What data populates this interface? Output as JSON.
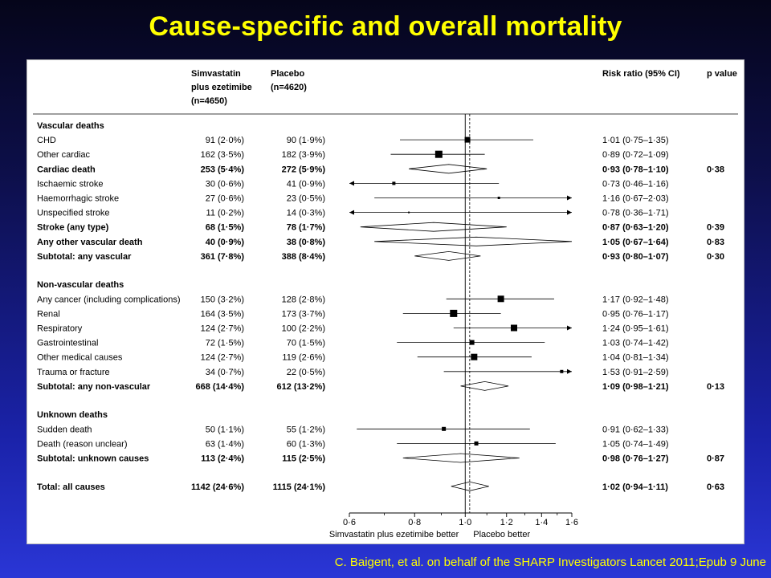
{
  "slide": {
    "title": "Cause-specific and overall mortality",
    "citation": "C. Baigent, et al. on behalf of the SHARP Investigators Lancet 2011;Epub 9 June"
  },
  "colors": {
    "title": "#ffff00",
    "citation": "#ffff00",
    "panel": "#ffffff",
    "ink": "#000000"
  },
  "chart_data": {
    "type": "forest",
    "headers": {
      "col1": [
        "Simvastatin",
        "plus ezetimibe",
        "(n=4650)"
      ],
      "col2": [
        "Placebo",
        "(n=4620)"
      ],
      "rr": "Risk ratio (95% CI)",
      "p": "p value"
    },
    "x_axis": {
      "scale": "log",
      "range": [
        0.6,
        1.6
      ],
      "ticks": [
        0.6,
        0.8,
        1.0,
        1.2,
        1.4,
        1.6
      ],
      "tick_labels": [
        "0·6",
        "0·8",
        "1·0",
        "1·2",
        "1·4",
        "1·6"
      ],
      "minor_ticks": [
        0.7,
        0.9,
        1.1,
        1.3,
        1.5
      ],
      "reference_line": 1.0,
      "overall_line": 1.02,
      "label_left": "Simvastatin plus ezetimibe better",
      "label_right": "Placebo better"
    },
    "rows": [
      {
        "type": "section",
        "label": "Vascular deaths"
      },
      {
        "type": "item",
        "label": "CHD",
        "simva": "91 (2·0%)",
        "placebo": "90 (1·9%)",
        "rr": 1.01,
        "lo": 0.75,
        "hi": 1.35,
        "rr_text": "1·01 (0·75–1·35)",
        "p": "",
        "size": 7
      },
      {
        "type": "item",
        "label": "Other cardiac",
        "simva": "162 (3·5%)",
        "placebo": "182 (3·9%)",
        "rr": 0.89,
        "lo": 0.72,
        "hi": 1.09,
        "rr_text": "0·89 (0·72–1·09)",
        "p": "",
        "size": 9
      },
      {
        "type": "subtotal",
        "label": "Cardiac death",
        "simva": "253 (5·4%)",
        "placebo": "272 (5·9%)",
        "rr": 0.93,
        "lo": 0.78,
        "hi": 1.1,
        "rr_text": "0·93 (0·78–1·10)",
        "p": "0·38"
      },
      {
        "type": "item",
        "label": "Ischaemic stroke",
        "simva": "30 (0·6%)",
        "placebo": "41 (0·9%)",
        "rr": 0.73,
        "lo": 0.46,
        "hi": 1.16,
        "rr_text": "0·73 (0·46–1·16)",
        "p": "",
        "size": 4
      },
      {
        "type": "item",
        "label": "Haemorrhagic stroke",
        "simva": "27 (0·6%)",
        "placebo": "23 (0·5%)",
        "rr": 1.16,
        "lo": 0.67,
        "hi": 2.03,
        "rr_text": "1·16 (0·67–2·03)",
        "p": "",
        "size": 3
      },
      {
        "type": "item",
        "label": "Unspecified stroke",
        "simva": "11 (0·2%)",
        "placebo": "14 (0·3%)",
        "rr": 0.78,
        "lo": 0.36,
        "hi": 1.71,
        "rr_text": "0·78 (0·36–1·71)",
        "p": "",
        "size": 2
      },
      {
        "type": "subtotal",
        "label": "Stroke (any type)",
        "simva": "68 (1·5%)",
        "placebo": "78 (1·7%)",
        "rr": 0.87,
        "lo": 0.63,
        "hi": 1.2,
        "rr_text": "0·87 (0·63–1·20)",
        "p": "0·39"
      },
      {
        "type": "subtotal",
        "label": "Any other vascular death",
        "simva": "40 (0·9%)",
        "placebo": "38 (0·8%)",
        "rr": 1.05,
        "lo": 0.67,
        "hi": 1.64,
        "rr_text": "1·05 (0·67–1·64)",
        "p": "0·83"
      },
      {
        "type": "subtotal",
        "label": "Subtotal: any vascular",
        "simva": "361 (7·8%)",
        "placebo": "388 (8·4%)",
        "rr": 0.93,
        "lo": 0.8,
        "hi": 1.07,
        "rr_text": "0·93 (0·80–1·07)",
        "p": "0·30"
      },
      {
        "type": "gap"
      },
      {
        "type": "section",
        "label": "Non-vascular deaths"
      },
      {
        "type": "item",
        "label": "Any cancer (including complications)",
        "simva": "150 (3·2%)",
        "placebo": "128 (2·8%)",
        "rr": 1.17,
        "lo": 0.92,
        "hi": 1.48,
        "rr_text": "1·17 (0·92–1·48)",
        "p": "",
        "size": 8
      },
      {
        "type": "item",
        "label": "Renal",
        "simva": "164 (3·5%)",
        "placebo": "173 (3·7%)",
        "rr": 0.95,
        "lo": 0.76,
        "hi": 1.17,
        "rr_text": "0·95 (0·76–1·17)",
        "p": "",
        "size": 9
      },
      {
        "type": "item",
        "label": "Respiratory",
        "simva": "124 (2·7%)",
        "placebo": "100 (2·2%)",
        "rr": 1.24,
        "lo": 0.95,
        "hi": 1.61,
        "rr_text": "1·24 (0·95–1·61)",
        "p": "",
        "size": 8
      },
      {
        "type": "item",
        "label": "Gastrointestinal",
        "simva": "72 (1·5%)",
        "placebo": "70 (1·5%)",
        "rr": 1.03,
        "lo": 0.74,
        "hi": 1.42,
        "rr_text": "1·03 (0·74–1·42)",
        "p": "",
        "size": 6
      },
      {
        "type": "item",
        "label": "Other medical causes",
        "simva": "124 (2·7%)",
        "placebo": "119 (2·6%)",
        "rr": 1.04,
        "lo": 0.81,
        "hi": 1.34,
        "rr_text": "1·04 (0·81–1·34)",
        "p": "",
        "size": 8
      },
      {
        "type": "item",
        "label": "Trauma or fracture",
        "simva": "34 (0·7%)",
        "placebo": "22 (0·5%)",
        "rr": 1.53,
        "lo": 0.91,
        "hi": 2.59,
        "rr_text": "1·53 (0·91–2·59)",
        "p": "",
        "size": 4
      },
      {
        "type": "subtotal",
        "label": "Subtotal: any non-vascular",
        "simva": "668 (14·4%)",
        "placebo": "612 (13·2%)",
        "rr": 1.09,
        "lo": 0.98,
        "hi": 1.21,
        "rr_text": "1·09 (0·98–1·21)",
        "p": "0·13"
      },
      {
        "type": "gap"
      },
      {
        "type": "section",
        "label": "Unknown deaths"
      },
      {
        "type": "item",
        "label": "Sudden death",
        "simva": "50 (1·1%)",
        "placebo": "55 (1·2%)",
        "rr": 0.91,
        "lo": 0.62,
        "hi": 1.33,
        "rr_text": "0·91 (0·62–1·33)",
        "p": "",
        "size": 5
      },
      {
        "type": "item",
        "label": "Death (reason unclear)",
        "simva": "63 (1·4%)",
        "placebo": "60 (1·3%)",
        "rr": 1.05,
        "lo": 0.74,
        "hi": 1.49,
        "rr_text": "1·05 (0·74–1·49)",
        "p": "",
        "size": 5
      },
      {
        "type": "subtotal",
        "label": "Subtotal: unknown causes",
        "simva": "113 (2·4%)",
        "placebo": "115 (2·5%)",
        "rr": 0.98,
        "lo": 0.76,
        "hi": 1.27,
        "rr_text": "0·98 (0·76–1·27)",
        "p": "0·87"
      },
      {
        "type": "gap"
      },
      {
        "type": "subtotal",
        "label": "Total: all causes",
        "simva": "1142 (24·6%)",
        "placebo": "1115 (24·1%)",
        "rr": 1.02,
        "lo": 0.94,
        "hi": 1.11,
        "rr_text": "1·02 (0·94–1·11)",
        "p": "0·63"
      }
    ]
  }
}
